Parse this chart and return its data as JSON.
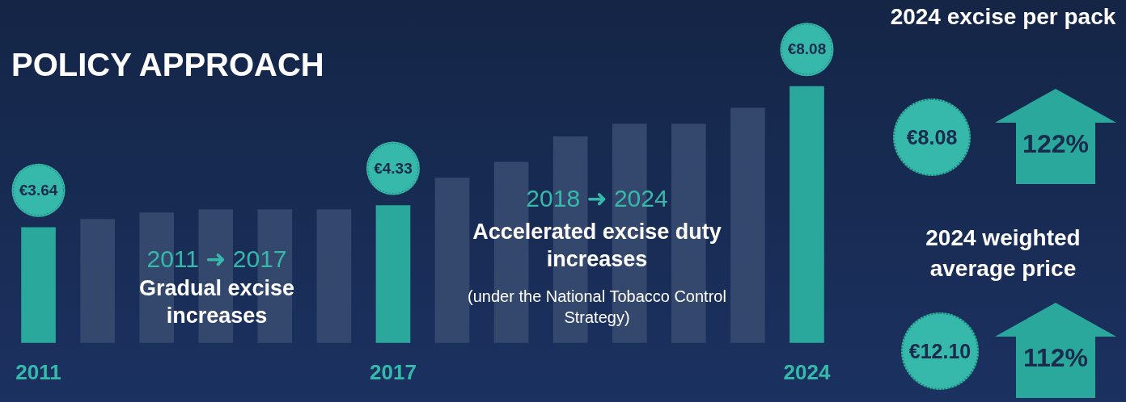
{
  "chart_data": [
    {
      "type": "bar",
      "title": "POLICY APPROACH",
      "categories": [
        "2011",
        null,
        null,
        null,
        null,
        null,
        "2017",
        null,
        null,
        null,
        null,
        null,
        null,
        "2024"
      ],
      "values": [
        3.64,
        3.9,
        4.1,
        4.2,
        4.2,
        4.2,
        4.33,
        5.2,
        5.7,
        6.5,
        6.9,
        6.9,
        7.4,
        8.08
      ],
      "value_labels": [
        "€3.64",
        null,
        null,
        null,
        null,
        null,
        "€4.33",
        null,
        null,
        null,
        null,
        null,
        null,
        "€8.08"
      ],
      "colors": [
        "#2aa89c",
        "#34476c",
        "#34476c",
        "#34476c",
        "#34476c",
        "#34476c",
        "#2aa89c",
        "#34476c",
        "#34476c",
        "#34476c",
        "#34476c",
        "#34476c",
        "#34476c",
        "#2aa89c"
      ],
      "annotations": [
        "2011 ➜ 2017",
        "Gradual excise increases",
        "2018 ➜ 2024",
        "Accelerated excise duty increases",
        "(under the National Tobacco Control Strategy)"
      ]
    },
    {
      "type": "other",
      "annotations": [
        "2024 excise per pack",
        "€8.08",
        "122%",
        "2024 weighted average price",
        "€12.10",
        "112%"
      ]
    }
  ]
}
